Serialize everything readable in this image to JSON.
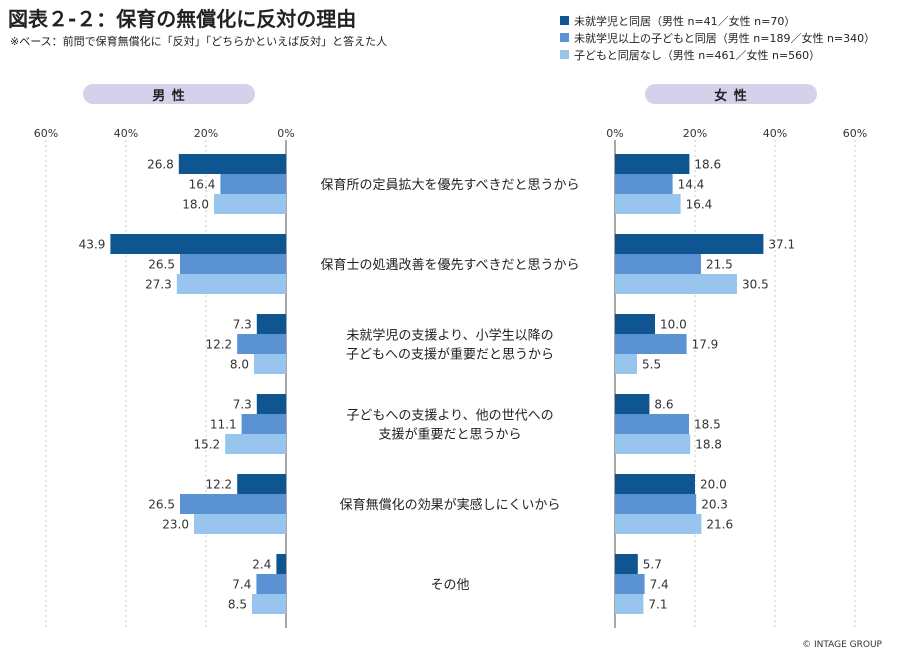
{
  "title": "図表２-２：保育の無償化に反対の理由",
  "subtitle": "※ベース：前問で保育無償化に「反対」「どちらかといえば反対」と答えた人",
  "copyright": "© INTAGE GROUP",
  "colors": {
    "series1": "#0f5592",
    "series2": "#5b92d4",
    "series3": "#98c5ee",
    "pill": "#d4d2ea",
    "grid": "#c9c9c9",
    "axis": "#8a8a8a"
  },
  "chart_data": {
    "type": "bar",
    "orientation": "horizontal-butterfly",
    "title": "図表２-２：保育の無償化に反対の理由",
    "xlim": [
      0,
      60
    ],
    "ticks": [
      "60%",
      "40%",
      "20%",
      "0%",
      "0%",
      "20%",
      "40%",
      "60%"
    ],
    "panels": [
      {
        "label": "男 性",
        "key": "male",
        "direction": "left"
      },
      {
        "label": "女 性",
        "key": "female",
        "direction": "right"
      }
    ],
    "series": [
      {
        "name": "未就学児と同居（男性 n=41／女性 n=70）",
        "color": "#0f5592"
      },
      {
        "name": "未就学児以上の子どもと同居（男性 n=189／女性 n=340）",
        "color": "#5b92d4"
      },
      {
        "name": "子どもと同居なし（男性 n=461／女性 n=560）",
        "color": "#98c5ee"
      }
    ],
    "categories": [
      {
        "lines": [
          "保育所の定員拡大を優先すべきだと思うから"
        ],
        "male": [
          "26.8",
          "16.4",
          "18.0"
        ],
        "female": [
          "18.6",
          "14.4",
          "16.4"
        ]
      },
      {
        "lines": [
          "保育士の処遇改善を優先すべきだと思うから"
        ],
        "male": [
          "43.9",
          "26.5",
          "27.3"
        ],
        "female": [
          "37.1",
          "21.5",
          "30.5"
        ]
      },
      {
        "lines": [
          "未就学児の支援より、小学生以降の",
          "子どもへの支援が重要だと思うから"
        ],
        "male": [
          "7.3",
          "12.2",
          "8.0"
        ],
        "female": [
          "10.0",
          "17.9",
          "5.5"
        ]
      },
      {
        "lines": [
          "子どもへの支援より、他の世代への",
          "支援が重要だと思うから"
        ],
        "male": [
          "7.3",
          "11.1",
          "15.2"
        ],
        "female": [
          "8.6",
          "18.5",
          "18.8"
        ]
      },
      {
        "lines": [
          "保育無償化の効果が実感しにくいから"
        ],
        "male": [
          "12.2",
          "26.5",
          "23.0"
        ],
        "female": [
          "20.0",
          "20.3",
          "21.6"
        ]
      },
      {
        "lines": [
          "その他"
        ],
        "male": [
          "2.4",
          "7.4",
          "8.5"
        ],
        "female": [
          "5.7",
          "7.4",
          "7.1"
        ]
      }
    ]
  }
}
